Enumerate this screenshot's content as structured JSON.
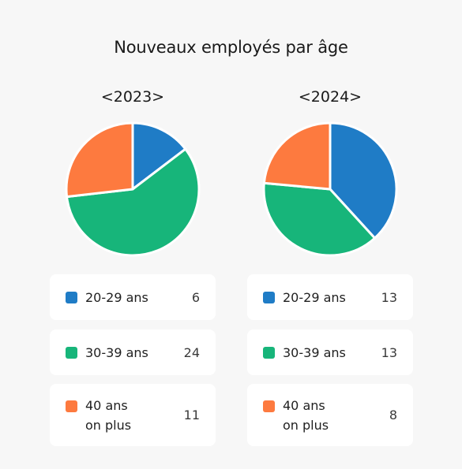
{
  "title": "Nouveaux employés par âge",
  "chart_data": [
    {
      "type": "pie",
      "title": "<2023>",
      "categories": [
        "20-29 ans",
        "30-39 ans",
        "40 ans\non plus"
      ],
      "values": [
        6,
        24,
        11
      ],
      "colors": [
        "#1f7cc6",
        "#17b57a",
        "#fd7a3f"
      ]
    },
    {
      "type": "pie",
      "title": "<2024>",
      "categories": [
        "20-29 ans",
        "30-39 ans",
        "40 ans\non plus"
      ],
      "values": [
        13,
        13,
        8
      ],
      "colors": [
        "#1f7cc6",
        "#17b57a",
        "#fd7a3f"
      ]
    }
  ]
}
